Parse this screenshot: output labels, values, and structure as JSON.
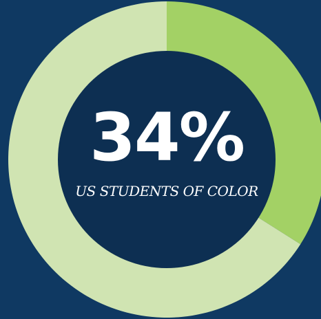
{
  "chart_data": {
    "type": "pie",
    "title": "",
    "center_value": "34%",
    "center_label": "US STUDENTS OF COLOR",
    "slices": [
      {
        "value": 34
      },
      {
        "value": 66
      }
    ]
  },
  "colors": {
    "background": "#0f3962",
    "center": "#0d2f52",
    "highlight_slice": "#a3d165",
    "remainder_slice": "#d0e4b2"
  }
}
